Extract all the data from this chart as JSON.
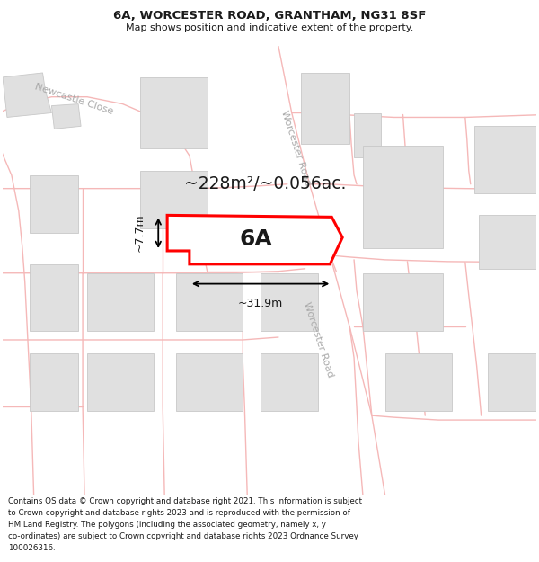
{
  "title": "6A, WORCESTER ROAD, GRANTHAM, NG31 8SF",
  "subtitle": "Map shows position and indicative extent of the property.",
  "footer": "Contains OS data © Crown copyright and database right 2021. This information is subject\nto Crown copyright and database rights 2023 and is reproduced with the permission of\nHM Land Registry. The polygons (including the associated geometry, namely x, y\nco-ordinates) are subject to Crown copyright and database rights 2023 Ordnance Survey\n100026316.",
  "map_bg": "#f7f7f7",
  "road_color": "#f5b8b8",
  "building_color": "#e0e0e0",
  "building_edge": "#c8c8c8",
  "highlight_color": "#ff0000",
  "highlight_fill": "#ffffff",
  "label_6A": "6A",
  "area_label": "~228m²/~0.056ac.",
  "dim_width": "~31.9m",
  "dim_height": "~7.7m",
  "road_label_worcs": "Worcester Road",
  "road_label_newcastle": "Newcastle Close"
}
